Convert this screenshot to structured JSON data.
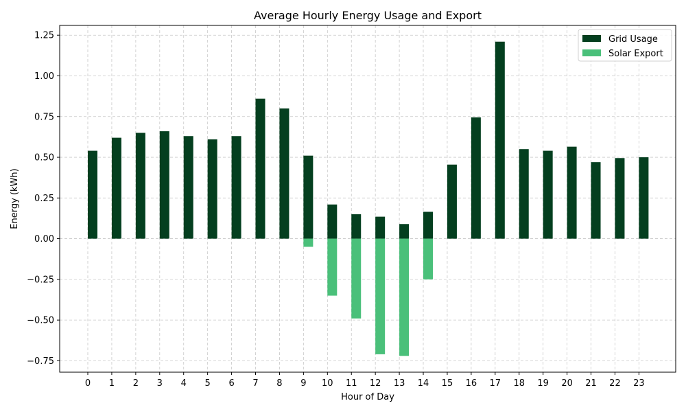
{
  "chart_data": {
    "type": "bar",
    "title": "Average Hourly Energy Usage and Export",
    "xlabel": "Hour of Day",
    "ylabel": "Energy (kWh)",
    "categories": [
      "0",
      "1",
      "2",
      "3",
      "4",
      "5",
      "6",
      "7",
      "8",
      "9",
      "10",
      "11",
      "12",
      "13",
      "14",
      "15",
      "16",
      "17",
      "18",
      "19",
      "20",
      "21",
      "22",
      "23"
    ],
    "ylim": [
      -0.82,
      1.31
    ],
    "yticks": [
      -0.75,
      -0.5,
      -0.25,
      0.0,
      0.25,
      0.5,
      0.75,
      1.0,
      1.25
    ],
    "ytick_labels": [
      "−0.75",
      "−0.50",
      "−0.25",
      "0.00",
      "0.25",
      "0.50",
      "0.75",
      "1.00",
      "1.25"
    ],
    "grid": true,
    "legend_position": "top-right",
    "series": [
      {
        "name": "Grid Usage",
        "color": "#043f1f",
        "values": [
          0.54,
          0.62,
          0.65,
          0.66,
          0.63,
          0.61,
          0.63,
          0.86,
          0.8,
          0.51,
          0.21,
          0.15,
          0.135,
          0.09,
          0.165,
          0.455,
          0.745,
          1.21,
          0.55,
          0.54,
          0.565,
          0.47,
          0.495,
          0.5
        ]
      },
      {
        "name": "Solar Export",
        "color": "#4ac07a",
        "values": [
          0,
          0,
          0,
          0,
          0,
          0,
          0,
          0,
          0,
          -0.05,
          -0.35,
          -0.49,
          -0.71,
          -0.72,
          -0.25,
          0,
          0,
          0,
          0,
          0,
          0,
          0,
          0,
          0
        ]
      }
    ]
  }
}
